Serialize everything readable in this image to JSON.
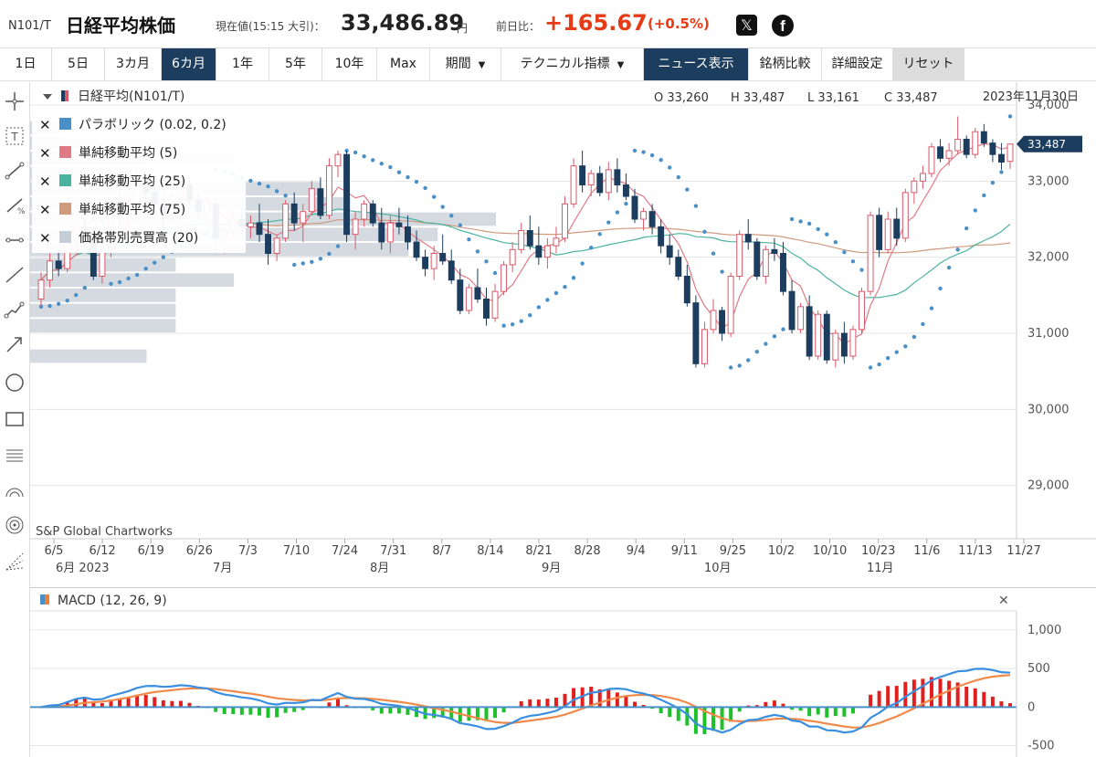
{
  "header": {
    "code": "N101/T",
    "title": "日経平均株価",
    "price_label": "現在値(15:15 大引)：",
    "price": "33,486.89",
    "price_unit": "円",
    "change_label": "前日比：",
    "change": "+165.67",
    "change_pct": "(+0.5%)"
  },
  "toolbar": {
    "periods": [
      "1日",
      "5日",
      "3カ月",
      "6カ月",
      "1年",
      "5年",
      "10年",
      "Max"
    ],
    "active_period": "6カ月",
    "period_menu": "期間",
    "indicator_menu": "テクニカル指標",
    "news_label": "ニュース表示",
    "compare_label": "銘柄比較",
    "settings_label": "詳細設定",
    "reset_label": "リセット"
  },
  "chart": {
    "symbol_label": "日経平均(N101/T)",
    "ohlc": {
      "open": "O 33,260",
      "high": "H 33,487",
      "low": "L 33,161",
      "close": "C 33,487"
    },
    "date": "2023年11月30日",
    "last_price_tag": "33,487",
    "watermark": "S&P Global Chartworks",
    "legend": [
      {
        "label": "パラボリック (0.02, 0.2)",
        "color": "#4a90c8"
      },
      {
        "label": "単純移動平均 (5)",
        "color": "#e07a85"
      },
      {
        "label": "単純移動平均 (25)",
        "color": "#4ab3a0"
      },
      {
        "label": "単純移動平均 (75)",
        "color": "#cf9a7e"
      },
      {
        "label": "価格帯別売買高 (20)",
        "color": "#c5ced6"
      }
    ],
    "x_dates": [
      "6/5",
      "6/12",
      "6/19",
      "6/26",
      "7/3",
      "7/10",
      "7/24",
      "7/31",
      "8/7",
      "8/14",
      "8/21",
      "8/28",
      "9/4",
      "9/11",
      "9/25",
      "10/2",
      "10/10",
      "10/23",
      "11/6",
      "11/13",
      "11/27"
    ],
    "month_labels": [
      "6月 2023",
      "7月",
      "8月",
      "9月",
      "10月",
      "11月"
    ]
  },
  "chart_data": {
    "type": "candlestick",
    "ylim": [
      28300,
      34300
    ],
    "y_ticks": [
      29000,
      30000,
      31000,
      32000,
      33000,
      34000
    ],
    "candles": [
      [
        31450,
        31800,
        31350,
        31700
      ],
      [
        31700,
        32050,
        31600,
        31950
      ],
      [
        31950,
        32100,
        31750,
        31850
      ],
      [
        31850,
        32350,
        31800,
        32250
      ],
      [
        32200,
        32450,
        32050,
        32400
      ],
      [
        32400,
        32500,
        32100,
        32250
      ],
      [
        32250,
        32400,
        31700,
        31750
      ],
      [
        31750,
        32200,
        31650,
        32100
      ],
      [
        32100,
        32700,
        32000,
        32600
      ],
      [
        32600,
        32900,
        32400,
        32550
      ],
      [
        32550,
        32800,
        32300,
        32700
      ],
      [
        32700,
        33150,
        32650,
        32950
      ],
      [
        32950,
        33050,
        32650,
        32850
      ],
      [
        32850,
        33000,
        32550,
        32700
      ],
      [
        32700,
        32850,
        32350,
        32550
      ],
      [
        32550,
        32850,
        32450,
        32800
      ],
      [
        32800,
        33050,
        32700,
        32950
      ],
      [
        32950,
        33050,
        32700,
        32750
      ],
      [
        32750,
        32850,
        32500,
        32600
      ],
      [
        32600,
        32800,
        32400,
        32700
      ],
      [
        32700,
        32750,
        32100,
        32250
      ],
      [
        32250,
        32400,
        32050,
        32350
      ],
      [
        32350,
        32650,
        32250,
        32500
      ],
      [
        32500,
        32650,
        32300,
        32400
      ],
      [
        32400,
        32550,
        32250,
        32450
      ],
      [
        32450,
        32700,
        32200,
        32300
      ],
      [
        32300,
        32500,
        31900,
        32050
      ],
      [
        32050,
        32300,
        31950,
        32250
      ],
      [
        32250,
        32750,
        32200,
        32700
      ],
      [
        32700,
        32850,
        32350,
        32450
      ],
      [
        32450,
        32700,
        32200,
        32600
      ],
      [
        32600,
        33000,
        32550,
        32900
      ],
      [
        32900,
        33050,
        32500,
        32550
      ],
      [
        32550,
        33300,
        32500,
        33200
      ],
      [
        33200,
        33400,
        33050,
        33350
      ],
      [
        33350,
        33400,
        32200,
        32300
      ],
      [
        32300,
        32600,
        32100,
        32500
      ],
      [
        32500,
        32750,
        32400,
        32700
      ],
      [
        32700,
        32750,
        32400,
        32450
      ],
      [
        32450,
        32650,
        32100,
        32200
      ],
      [
        32200,
        32550,
        32050,
        32450
      ],
      [
        32450,
        32650,
        32300,
        32400
      ],
      [
        32400,
        32550,
        32100,
        32200
      ],
      [
        32200,
        32350,
        31950,
        32000
      ],
      [
        32000,
        32100,
        31750,
        31850
      ],
      [
        31850,
        32150,
        31700,
        32050
      ],
      [
        32050,
        32300,
        31900,
        31950
      ],
      [
        31950,
        32100,
        31650,
        31700
      ],
      [
        31700,
        31850,
        31250,
        31300
      ],
      [
        31300,
        31650,
        31250,
        31600
      ],
      [
        31600,
        31850,
        31400,
        31450
      ],
      [
        31450,
        31600,
        31100,
        31200
      ],
      [
        31200,
        31650,
        31150,
        31550
      ],
      [
        31550,
        31950,
        31500,
        31900
      ],
      [
        31900,
        32200,
        31800,
        32100
      ],
      [
        32100,
        32450,
        32050,
        32350
      ],
      [
        32350,
        32550,
        32100,
        32150
      ],
      [
        32150,
        32400,
        31900,
        32000
      ],
      [
        32000,
        32250,
        31850,
        32150
      ],
      [
        32150,
        32400,
        32050,
        32250
      ],
      [
        32250,
        32800,
        32200,
        32700
      ],
      [
        32700,
        33300,
        32650,
        33200
      ],
      [
        33200,
        33400,
        32850,
        32950
      ],
      [
        32950,
        33150,
        32800,
        33100
      ],
      [
        33100,
        33200,
        32800,
        32850
      ],
      [
        32850,
        33250,
        32750,
        33150
      ],
      [
        33150,
        33300,
        32850,
        32950
      ],
      [
        32950,
        33100,
        32750,
        32800
      ],
      [
        32800,
        32900,
        32450,
        32500
      ],
      [
        32500,
        32650,
        32350,
        32600
      ],
      [
        32600,
        32700,
        32300,
        32400
      ],
      [
        32400,
        32500,
        32050,
        32150
      ],
      [
        32150,
        32300,
        31900,
        32000
      ],
      [
        32000,
        32100,
        31700,
        31750
      ],
      [
        31750,
        31900,
        31350,
        31400
      ],
      [
        31400,
        31500,
        30550,
        30600
      ],
      [
        30600,
        31150,
        30550,
        31050
      ],
      [
        31050,
        31450,
        31000,
        31300
      ],
      [
        31300,
        31350,
        30900,
        31000
      ],
      [
        31000,
        31800,
        30950,
        31750
      ],
      [
        31750,
        32350,
        31700,
        32300
      ],
      [
        32300,
        32500,
        32100,
        32200
      ],
      [
        32200,
        32250,
        31700,
        31750
      ],
      [
        31750,
        32150,
        31650,
        32100
      ],
      [
        32100,
        32250,
        31950,
        32050
      ],
      [
        32050,
        32200,
        31500,
        31550
      ],
      [
        31550,
        31700,
        31000,
        31050
      ],
      [
        31050,
        31400,
        31000,
        31350
      ],
      [
        31350,
        31500,
        30650,
        30700
      ],
      [
        30700,
        31300,
        30650,
        31250
      ],
      [
        31250,
        31300,
        30600,
        30650
      ],
      [
        30650,
        31050,
        30550,
        31000
      ],
      [
        31000,
        31150,
        30600,
        30700
      ],
      [
        30700,
        31100,
        30650,
        31050
      ],
      [
        31050,
        31600,
        31000,
        31550
      ],
      [
        31550,
        32600,
        31500,
        32550
      ],
      [
        32550,
        32650,
        32000,
        32100
      ],
      [
        32100,
        32600,
        32050,
        32500
      ],
      [
        32500,
        32650,
        32150,
        32250
      ],
      [
        32250,
        32900,
        32200,
        32850
      ],
      [
        32850,
        33050,
        32700,
        33000
      ],
      [
        33000,
        33200,
        32900,
        33100
      ],
      [
        33100,
        33500,
        33050,
        33450
      ],
      [
        33450,
        33550,
        33250,
        33300
      ],
      [
        33300,
        33500,
        33200,
        33400
      ],
      [
        33400,
        33850,
        33350,
        33550
      ],
      [
        33550,
        33600,
        33300,
        33350
      ],
      [
        33350,
        33700,
        33300,
        33650
      ],
      [
        33650,
        33750,
        33450,
        33500
      ],
      [
        33500,
        33550,
        33250,
        33350
      ],
      [
        33350,
        33500,
        33150,
        33250
      ],
      [
        33260,
        33487,
        33161,
        33487
      ]
    ],
    "last_price": 33487,
    "macd_ylim": [
      -600,
      1200
    ],
    "macd_ticks": [
      1000,
      500,
      0,
      -500
    ],
    "macd_label": "MACD (12, 26, 9)"
  }
}
